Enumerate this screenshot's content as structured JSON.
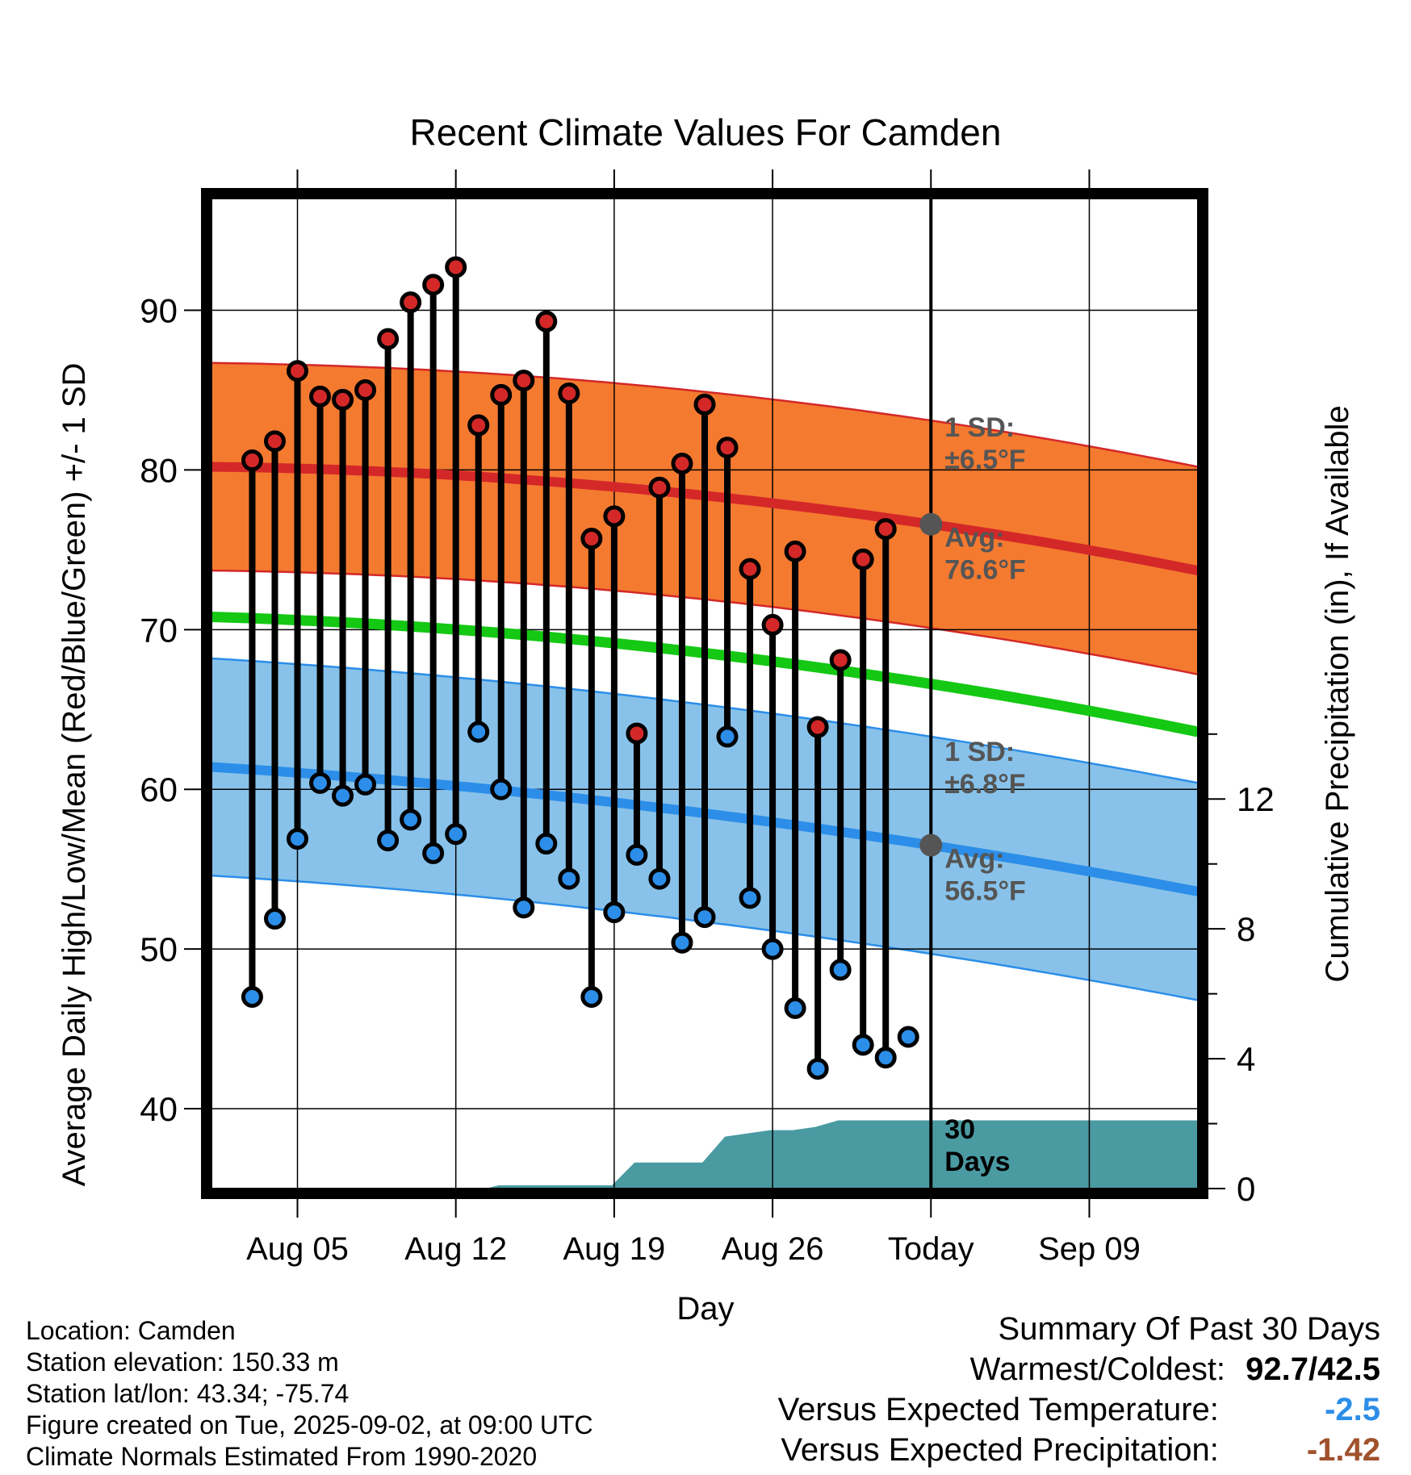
{
  "chart_data": {
    "type": "line",
    "title": "Recent Climate Values For Camden",
    "xlabel": "Day",
    "ylabel_left": "Average Daily High/Low/Mean (Red/Blue/Green) +/- 1 SD",
    "ylabel_right": "Cumulative Precipitation (in), If Available",
    "x_range_days": [
      -31.8,
      11.8
    ],
    "x_ticks": [
      {
        "day": -28,
        "label": "Aug 05"
      },
      {
        "day": -21,
        "label": "Aug 12"
      },
      {
        "day": -14,
        "label": "Aug 19"
      },
      {
        "day": -7,
        "label": "Aug 26"
      },
      {
        "day": 0,
        "label": "Today"
      },
      {
        "day": 7,
        "label": "Sep 09"
      }
    ],
    "ylim_temp": [
      35,
      97
    ],
    "yticks_temp": [
      40,
      50,
      60,
      70,
      80,
      90
    ],
    "ylim_precip": [
      0,
      30.5
    ],
    "yticks_precip": [
      0,
      4,
      8,
      12
    ],
    "grid": true,
    "daily_high": [
      80.6,
      81.8,
      86.2,
      84.6,
      84.4,
      85.0,
      88.2,
      90.5,
      91.6,
      92.7,
      82.8,
      84.7,
      85.6,
      89.3,
      84.8,
      75.7,
      77.1,
      63.5,
      78.9,
      80.4,
      84.1,
      81.4,
      73.8,
      70.3,
      74.9,
      63.9,
      68.1,
      74.4,
      76.3
    ],
    "daily_low": [
      47.0,
      51.9,
      56.9,
      60.4,
      59.6,
      60.3,
      56.8,
      58.1,
      56.0,
      57.2,
      63.6,
      60.0,
      52.6,
      56.6,
      54.4,
      47.0,
      52.3,
      55.9,
      54.4,
      50.4,
      52.0,
      63.3,
      53.2,
      50.0,
      46.3,
      42.5,
      48.7,
      44.0,
      43.2,
      44.5
    ],
    "first_day_offset": -30,
    "normal_high": {
      "at_start": 80.2,
      "at_today": 76.6,
      "at_end": 73.7
    },
    "normal_low": {
      "at_start": 61.4,
      "at_today": 56.5,
      "at_end": 53.6
    },
    "normal_mean": {
      "at_start": 70.8,
      "at_today": 66.6,
      "at_end": 63.6
    },
    "sd_high": 6.5,
    "sd_low": 6.8,
    "precip_cumulative": [
      [
        -31.8,
        0
      ],
      [
        -19.7,
        0
      ],
      [
        -19.1,
        0.1
      ],
      [
        -14.1,
        0.1
      ],
      [
        -13.1,
        0.8
      ],
      [
        -10.1,
        0.8
      ],
      [
        -9.1,
        1.6
      ],
      [
        -8.1,
        1.7
      ],
      [
        -7.1,
        1.8
      ],
      [
        -6.1,
        1.8
      ],
      [
        -5.1,
        1.9
      ],
      [
        -4.1,
        2.1
      ],
      [
        11.8,
        2.1
      ]
    ],
    "annotations": {
      "high_sd": "1 SD:",
      "high_sd_val": "±6.5°F",
      "high_avg": "Avg:",
      "high_avg_val": "76.6°F",
      "low_sd": "1 SD:",
      "low_sd_val": "±6.8°F",
      "low_avg": "Avg:",
      "low_avg_val": "56.5°F",
      "window_line1": "30",
      "window_line2": "Days"
    },
    "colors": {
      "high_band": "#f47a30",
      "high_line": "#d42828",
      "low_band": "#88c2ea",
      "low_line": "#2c8ee8",
      "mean_line": "#14c814",
      "precip": "#4a9aa2",
      "high_dot": "#d42828",
      "low_dot": "#2c8ee8",
      "avg_marker": "#555555",
      "annotation_text": "#555555"
    }
  },
  "metadata_text": {
    "location": "Location: Camden",
    "elevation": "Station elevation: 150.33 m",
    "latlon": "Station lat/lon: 43.34; -75.74",
    "created": "Figure created on Tue, 2025-09-02, at 09:00 UTC",
    "normals": "Climate Normals Estimated From 1990-2020"
  },
  "summary": {
    "title": "Summary Of Past 30 Days",
    "warmest_label": "Warmest/Coldest:",
    "warmest_value": "92.7/42.5",
    "temp_label": "Versus Expected Temperature:",
    "temp_value": "-2.5",
    "temp_color": "#2c8ee8",
    "precip_label": "Versus Expected Precipitation:",
    "precip_value": "-1.42",
    "precip_color": "#a0522d"
  }
}
